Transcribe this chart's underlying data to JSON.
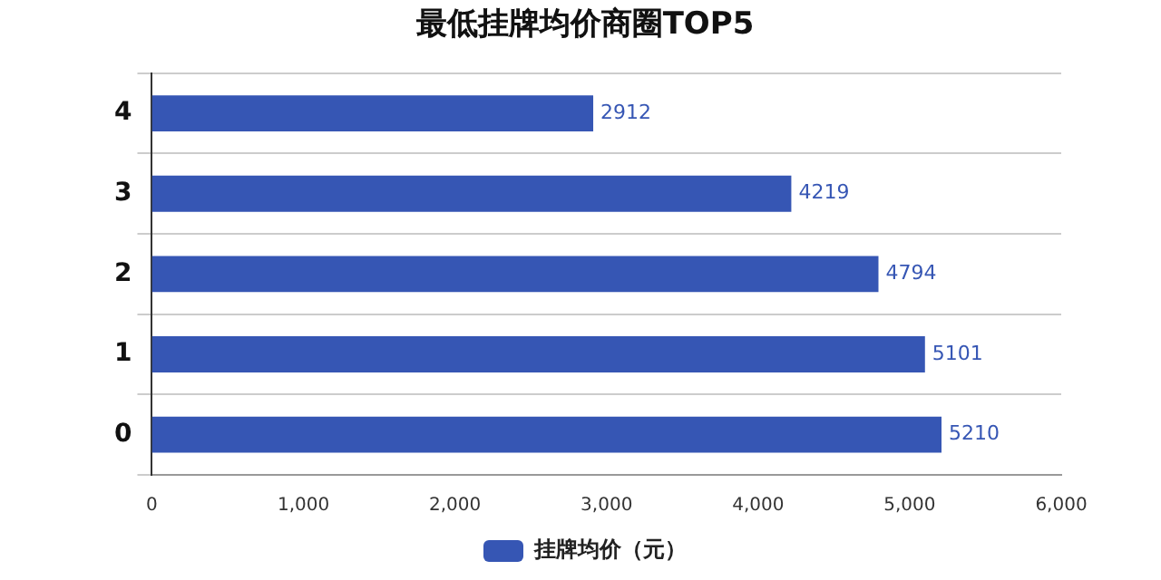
{
  "chart_data": {
    "type": "bar",
    "orientation": "horizontal",
    "title": "最低挂牌均价商圈TOP5",
    "categories": [
      "4",
      "3",
      "2",
      "1",
      "0"
    ],
    "series": [
      {
        "name": "挂牌均价（元）",
        "color": "#3656b4",
        "values": [
          2912,
          4219,
          4794,
          5101,
          5210
        ]
      }
    ],
    "xlim": [
      0,
      6000
    ],
    "xticks": [
      0,
      {
        "value": 1000,
        "label": "1,000"
      },
      {
        "value": 2000,
        "label": "2,000"
      },
      {
        "value": 3000,
        "label": "3,000"
      },
      {
        "value": 4000,
        "label": "4,000"
      },
      {
        "value": 5000,
        "label": "5,000"
      },
      {
        "value": 6000,
        "label": "6,000"
      }
    ],
    "grid": "y",
    "legend": "bottom",
    "data_labels": true
  }
}
